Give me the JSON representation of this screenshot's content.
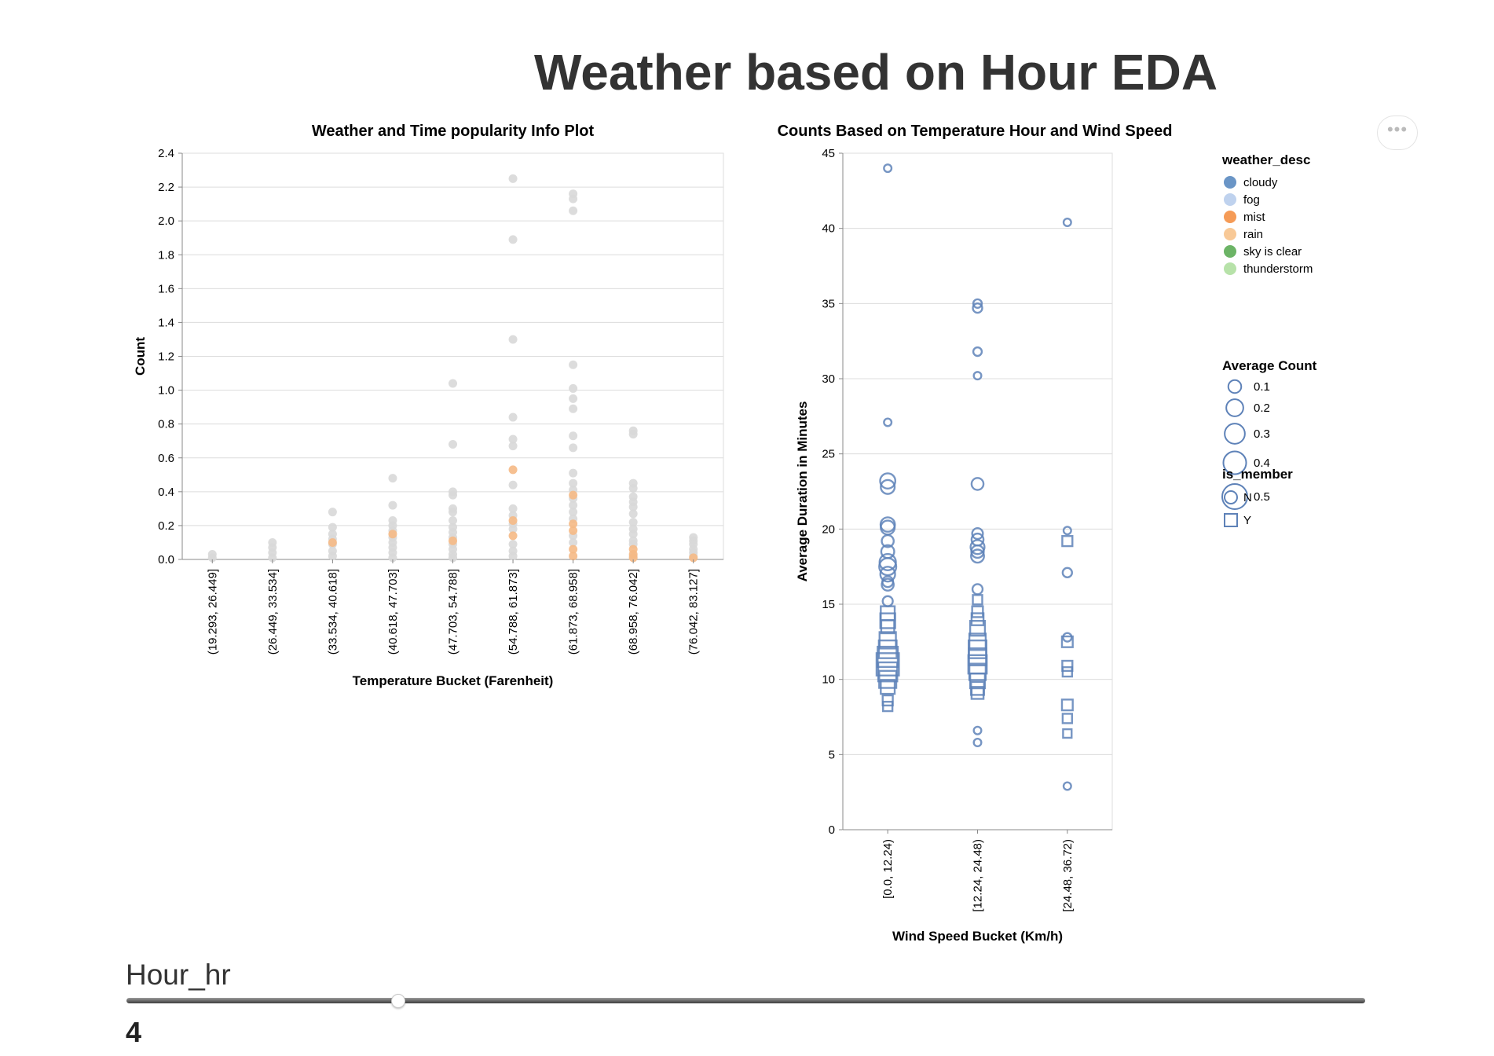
{
  "title": "Weather based on Hour EDA",
  "actions_icon": "ellipsis-icon",
  "chart_data": [
    {
      "type": "scatter",
      "title": "Weather and Time popularity Info Plot",
      "xlabel": "Temperature Bucket (Farenheit)",
      "ylabel": "Count",
      "ylim": [
        0,
        2.4
      ],
      "yticks": [
        "0.0",
        "0.2",
        "0.4",
        "0.6",
        "0.8",
        "1.0",
        "1.2",
        "1.4",
        "1.6",
        "1.8",
        "2.0",
        "2.2",
        "2.4"
      ],
      "categories": [
        "(19.293, 26.449]",
        "(26.449, 33.534]",
        "(33.534, 40.618]",
        "(40.618, 47.703]",
        "(47.703, 54.788]",
        "(54.788, 61.873]",
        "(61.873, 68.958]",
        "(68.958, 76.042]",
        "(76.042, 83.127]"
      ],
      "grid": true,
      "series": [
        {
          "name": "unselected",
          "color": "#d8d8d8",
          "points": [
            [
              0,
              0.03
            ],
            [
              0,
              0.01
            ],
            [
              1,
              0.1
            ],
            [
              1,
              0.07
            ],
            [
              1,
              0.04
            ],
            [
              1,
              0.01
            ],
            [
              2,
              0.28
            ],
            [
              2,
              0.19
            ],
            [
              2,
              0.15
            ],
            [
              2,
              0.12
            ],
            [
              2,
              0.09
            ],
            [
              2,
              0.05
            ],
            [
              2,
              0.02
            ],
            [
              3,
              0.48
            ],
            [
              3,
              0.32
            ],
            [
              3,
              0.23
            ],
            [
              3,
              0.2
            ],
            [
              3,
              0.17
            ],
            [
              3,
              0.13
            ],
            [
              3,
              0.1
            ],
            [
              3,
              0.07
            ],
            [
              3,
              0.04
            ],
            [
              3,
              0.01
            ],
            [
              4,
              1.04
            ],
            [
              4,
              0.68
            ],
            [
              4,
              0.4
            ],
            [
              4,
              0.38
            ],
            [
              4,
              0.3
            ],
            [
              4,
              0.28
            ],
            [
              4,
              0.23
            ],
            [
              4,
              0.19
            ],
            [
              4,
              0.16
            ],
            [
              4,
              0.13
            ],
            [
              4,
              0.09
            ],
            [
              4,
              0.06
            ],
            [
              4,
              0.03
            ],
            [
              4,
              0.01
            ],
            [
              5,
              2.25
            ],
            [
              5,
              1.89
            ],
            [
              5,
              1.3
            ],
            [
              5,
              0.84
            ],
            [
              5,
              0.71
            ],
            [
              5,
              0.67
            ],
            [
              5,
              0.44
            ],
            [
              5,
              0.3
            ],
            [
              5,
              0.26
            ],
            [
              5,
              0.21
            ],
            [
              5,
              0.18
            ],
            [
              5,
              0.09
            ],
            [
              5,
              0.05
            ],
            [
              5,
              0.02
            ],
            [
              6,
              2.16
            ],
            [
              6,
              2.13
            ],
            [
              6,
              2.06
            ],
            [
              6,
              1.15
            ],
            [
              6,
              1.01
            ],
            [
              6,
              0.95
            ],
            [
              6,
              0.89
            ],
            [
              6,
              0.73
            ],
            [
              6,
              0.66
            ],
            [
              6,
              0.51
            ],
            [
              6,
              0.45
            ],
            [
              6,
              0.41
            ],
            [
              6,
              0.36
            ],
            [
              6,
              0.32
            ],
            [
              6,
              0.28
            ],
            [
              6,
              0.24
            ],
            [
              6,
              0.14
            ],
            [
              6,
              0.1
            ],
            [
              7,
              0.76
            ],
            [
              7,
              0.74
            ],
            [
              7,
              0.45
            ],
            [
              7,
              0.42
            ],
            [
              7,
              0.37
            ],
            [
              7,
              0.34
            ],
            [
              7,
              0.31
            ],
            [
              7,
              0.27
            ],
            [
              7,
              0.22
            ],
            [
              7,
              0.18
            ],
            [
              7,
              0.15
            ],
            [
              7,
              0.11
            ],
            [
              7,
              0.09
            ],
            [
              7,
              0.02
            ],
            [
              8,
              0.13
            ],
            [
              8,
              0.11
            ],
            [
              8,
              0.09
            ],
            [
              8,
              0.06
            ],
            [
              8,
              0.04
            ],
            [
              8,
              0.02
            ]
          ]
        },
        {
          "name": "mist",
          "color": "#f5b985",
          "points": [
            [
              2,
              0.1
            ],
            [
              3,
              0.15
            ],
            [
              4,
              0.11
            ],
            [
              5,
              0.53
            ],
            [
              5,
              0.23
            ],
            [
              5,
              0.14
            ],
            [
              6,
              0.38
            ],
            [
              6,
              0.21
            ],
            [
              6,
              0.17
            ],
            [
              6,
              0.06
            ],
            [
              6,
              0.02
            ],
            [
              7,
              0.06
            ],
            [
              7,
              0.03
            ],
            [
              7,
              0.01
            ],
            [
              8,
              0.01
            ]
          ]
        }
      ]
    },
    {
      "type": "scatter",
      "title": "Counts Based on Temperature Hour and Wind Speed",
      "xlabel": "Wind Speed Bucket (Km/h)",
      "ylabel": "Average Duration in Minutes",
      "ylim": [
        0,
        45
      ],
      "yticks": [
        "0",
        "5",
        "10",
        "15",
        "20",
        "25",
        "30",
        "35",
        "40",
        "45"
      ],
      "categories": [
        "[0.0, 12.24)",
        "[12.24, 24.48)",
        "[24.48, 36.72)"
      ],
      "color": "#5e82b8",
      "grid": true,
      "points": [
        [
          0,
          44.0,
          0.02,
          "N"
        ],
        [
          0,
          27.1,
          0.02,
          "N"
        ],
        [
          0,
          23.2,
          0.15,
          "N"
        ],
        [
          0,
          22.8,
          0.12,
          "N"
        ],
        [
          0,
          20.3,
          0.13,
          "N"
        ],
        [
          0,
          20.1,
          0.12,
          "N"
        ],
        [
          0,
          19.2,
          0.08,
          "N"
        ],
        [
          0,
          18.5,
          0.1,
          "N"
        ],
        [
          0,
          17.8,
          0.18,
          "N"
        ],
        [
          0,
          17.5,
          0.2,
          "N"
        ],
        [
          0,
          17.0,
          0.14,
          "N"
        ],
        [
          0,
          16.5,
          0.06,
          "N"
        ],
        [
          0,
          16.3,
          0.08,
          "N"
        ],
        [
          0,
          15.2,
          0.05,
          "N"
        ],
        [
          0,
          14.4,
          0.12,
          "Y"
        ],
        [
          0,
          13.9,
          0.14,
          "Y"
        ],
        [
          0,
          13.5,
          0.1,
          "Y"
        ],
        [
          0,
          12.6,
          0.18,
          "Y"
        ],
        [
          0,
          12.0,
          0.22,
          "Y"
        ],
        [
          0,
          11.5,
          0.3,
          "Y"
        ],
        [
          0,
          11.0,
          0.38,
          "Y"
        ],
        [
          0,
          10.5,
          0.26,
          "Y"
        ],
        [
          0,
          10.0,
          0.2,
          "Y"
        ],
        [
          0,
          9.5,
          0.12,
          "Y"
        ],
        [
          0,
          8.6,
          0.05,
          "Y"
        ],
        [
          0,
          8.2,
          0.04,
          "Y"
        ],
        [
          1,
          35.0,
          0.03,
          "N"
        ],
        [
          1,
          34.7,
          0.04,
          "N"
        ],
        [
          1,
          31.8,
          0.03,
          "N"
        ],
        [
          1,
          30.2,
          0.02,
          "N"
        ],
        [
          1,
          23.0,
          0.08,
          "N"
        ],
        [
          1,
          19.7,
          0.06,
          "N"
        ],
        [
          1,
          19.3,
          0.08,
          "N"
        ],
        [
          1,
          18.8,
          0.12,
          "N"
        ],
        [
          1,
          18.5,
          0.09,
          "N"
        ],
        [
          1,
          18.2,
          0.1,
          "N"
        ],
        [
          1,
          16.0,
          0.05,
          "N"
        ],
        [
          1,
          15.3,
          0.04,
          "Y"
        ],
        [
          1,
          14.5,
          0.06,
          "Y"
        ],
        [
          1,
          14.0,
          0.08,
          "Y"
        ],
        [
          1,
          13.4,
          0.14,
          "Y"
        ],
        [
          1,
          12.5,
          0.18,
          "Y"
        ],
        [
          1,
          12.0,
          0.22,
          "Y"
        ],
        [
          1,
          11.5,
          0.2,
          "Y"
        ],
        [
          1,
          11.0,
          0.24,
          "Y"
        ],
        [
          1,
          10.5,
          0.18,
          "Y"
        ],
        [
          1,
          9.9,
          0.14,
          "Y"
        ],
        [
          1,
          9.4,
          0.1,
          "Y"
        ],
        [
          1,
          9.1,
          0.08,
          "Y"
        ],
        [
          1,
          6.6,
          0.02,
          "N"
        ],
        [
          1,
          5.8,
          0.02,
          "N"
        ],
        [
          2,
          40.4,
          0.02,
          "N"
        ],
        [
          2,
          19.9,
          0.02,
          "N"
        ],
        [
          2,
          19.2,
          0.05,
          "Y"
        ],
        [
          2,
          17.1,
          0.04,
          "N"
        ],
        [
          2,
          12.8,
          0.03,
          "N"
        ],
        [
          2,
          12.5,
          0.06,
          "Y"
        ],
        [
          2,
          10.9,
          0.05,
          "Y"
        ],
        [
          2,
          10.5,
          0.04,
          "Y"
        ],
        [
          2,
          8.3,
          0.06,
          "Y"
        ],
        [
          2,
          7.4,
          0.04,
          "Y"
        ],
        [
          2,
          6.4,
          0.03,
          "Y"
        ],
        [
          2,
          2.9,
          0.02,
          "N"
        ]
      ]
    }
  ],
  "legends": {
    "weather": {
      "title": "weather_desc",
      "items": [
        {
          "label": "cloudy",
          "color": "#6a95c6"
        },
        {
          "label": "fog",
          "color": "#bfd2ee"
        },
        {
          "label": "mist",
          "color": "#f59b57"
        },
        {
          "label": "rain",
          "color": "#f8c997"
        },
        {
          "label": "sky is clear",
          "color": "#6cb466"
        },
        {
          "label": "thunderstorm",
          "color": "#b7e2a9"
        }
      ]
    },
    "size": {
      "title": "Average Count",
      "items": [
        {
          "label": "0.1",
          "value": 0.1
        },
        {
          "label": "0.2",
          "value": 0.2
        },
        {
          "label": "0.3",
          "value": 0.3
        },
        {
          "label": "0.4",
          "value": 0.4
        },
        {
          "label": "0.5",
          "value": 0.5
        }
      ]
    },
    "member": {
      "title": "is_member",
      "items": [
        {
          "label": "N",
          "shape": "circle"
        },
        {
          "label": "Y",
          "shape": "square"
        }
      ]
    }
  },
  "slider": {
    "label": "Hour_hr",
    "value": 4,
    "min": 0,
    "max": 23
  }
}
